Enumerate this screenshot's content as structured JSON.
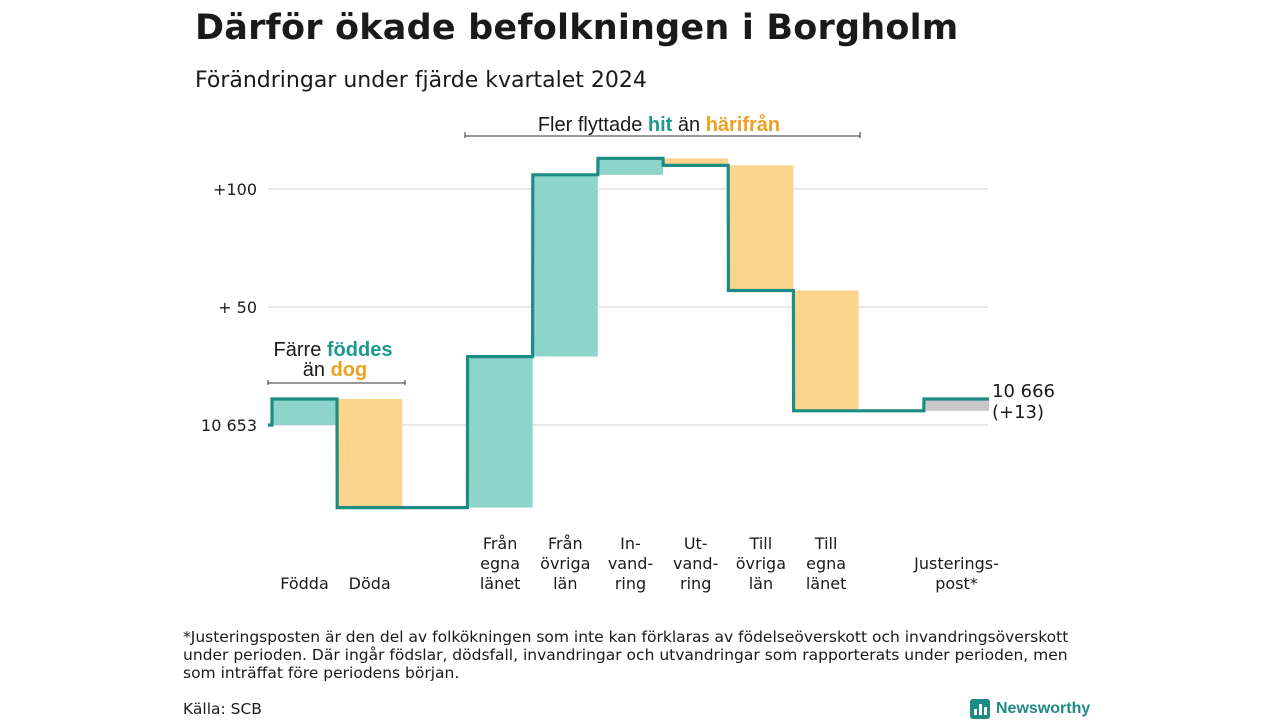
{
  "title": "Därför ökade befolkningen i Borgholm",
  "subtitle": "Förändringar under fjärde kvartalet 2024",
  "annotations": {
    "births_deaths": {
      "line1_prefix": "Färre ",
      "line1_keyword": "föddes",
      "line2_prefix": "än ",
      "line2_keyword": "dog"
    },
    "migration": {
      "prefix": "Fler flyttade ",
      "keyword_in": "hit",
      "middle": " än ",
      "keyword_out": "härifrån"
    }
  },
  "end_label": {
    "line1": "10 666",
    "line2": "(+13)"
  },
  "footnote": "*Justeringsposten är den del av folkökningen som inte kan förklaras av födelseöverskott och invandringsöverskott under perioden. Där ingår födslar, dödsfall, invandringar och utvandringar som rapporterats under perioden, men som inträffat före periodens början.",
  "source": "Källa: SCB",
  "brand": "Newsworthy",
  "colors": {
    "increase": "#8dd5cb",
    "decrease": "#fbd58e",
    "adjustment": "#c9c9c9",
    "line": "#1d8c84",
    "accent_teal": "#1d9a8e",
    "accent_orange": "#f0a020",
    "grid": "#d9d9d9"
  },
  "chart_data": {
    "type": "waterfall",
    "start_value": 10653,
    "end_value": 10666,
    "net_change": 13,
    "y_ticks": [
      {
        "value": 0,
        "label": "10 653"
      },
      {
        "value": 50,
        "label": "+ 50"
      },
      {
        "value": 100,
        "label": "+100"
      }
    ],
    "ylim": [
      -43,
      115
    ],
    "steps": [
      {
        "label": [
          "",
          "",
          "Födda"
        ],
        "change": 11,
        "kind": "increase"
      },
      {
        "label": [
          "",
          "",
          "Döda"
        ],
        "change": -46,
        "kind": "decrease"
      },
      {
        "label": [],
        "change": 0,
        "kind": "gap"
      },
      {
        "label": [
          "Från",
          "egna",
          "länet"
        ],
        "change": 64,
        "kind": "increase"
      },
      {
        "label": [
          "Från",
          "övriga",
          "län"
        ],
        "change": 77,
        "kind": "increase"
      },
      {
        "label": [
          "In-",
          "vand-",
          "ring"
        ],
        "change": 7,
        "kind": "increase"
      },
      {
        "label": [
          "Ut-",
          "vand-",
          "ring"
        ],
        "change": -3,
        "kind": "decrease"
      },
      {
        "label": [
          "Till",
          "övriga",
          "län"
        ],
        "change": -53,
        "kind": "decrease"
      },
      {
        "label": [
          "Till",
          "egna",
          "länet"
        ],
        "change": -51,
        "kind": "decrease"
      },
      {
        "label": [],
        "change": 0,
        "kind": "gap"
      },
      {
        "label": [
          "",
          "Justerings-",
          "post*"
        ],
        "change": 5,
        "kind": "adjustment"
      }
    ]
  }
}
